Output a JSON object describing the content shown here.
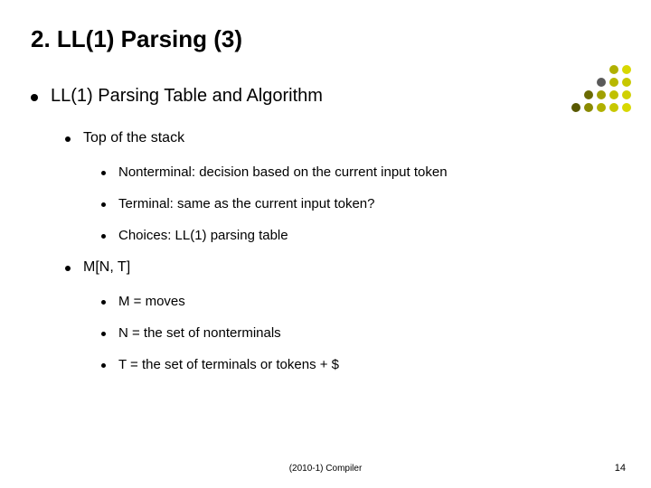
{
  "title": "2. LL(1) Parsing (3)",
  "lvl1": {
    "text": "LL(1) Parsing Table and Algorithm"
  },
  "section1": {
    "heading": "Top of the stack",
    "items": [
      "Nonterminal: decision based on the current input token",
      "Terminal: same as the current input token?",
      "Choices: LL(1) parsing table"
    ]
  },
  "section2": {
    "heading": "M[N, T]",
    "items": [
      "M = moves",
      "N = the set of nonterminals",
      "T = the set of terminals or tokens + $"
    ]
  },
  "footer": {
    "center": "(2010-1) Compiler",
    "pageNumber": "14"
  },
  "deco": {
    "colors": {
      "r1c5": "#6a6a6a",
      "r2c4": "#b0b000",
      "r2c5": "#d8d800",
      "r3c3": "#5a5a5a",
      "r3c4": "#b8b800",
      "r3c5": "#c8c800",
      "r4c2": "#6a6a00",
      "r4c3": "#a0a000",
      "r4c4": "#c0c000",
      "r4c5": "#d0d000",
      "r5c1": "#585800",
      "r5c2": "#8a8a00",
      "r5c3": "#b0b000",
      "r5c4": "#c8c800",
      "r5c5": "#d8d800"
    }
  }
}
